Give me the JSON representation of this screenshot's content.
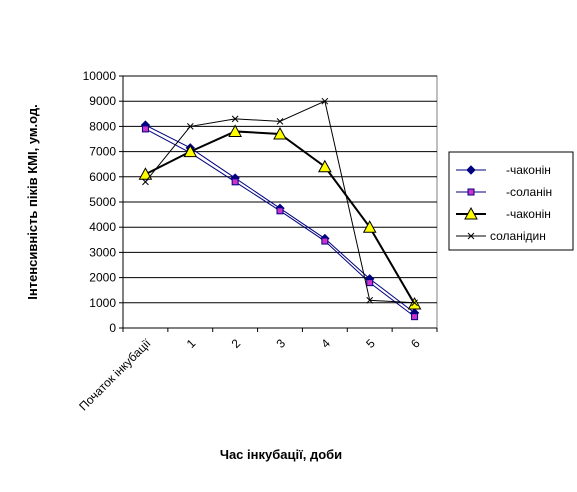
{
  "chart_data": {
    "type": "line",
    "title": "",
    "xlabel": "Час інкубації, доби",
    "ylabel": "Інтенсивність піків КМІ, ум.од.",
    "categories": [
      "Початок інкубації",
      "1",
      "2",
      "3",
      "4",
      "5",
      "6"
    ],
    "ylim": [
      0,
      10000
    ],
    "yticks": [
      0,
      1000,
      2000,
      3000,
      4000,
      5000,
      6000,
      7000,
      8000,
      9000,
      10000
    ],
    "grid": "horizontal",
    "legend_position": "right",
    "series": [
      {
        "name": "-чаконін",
        "marker": "diamond",
        "color": "#000080",
        "marker_fill": "#000080",
        "values": [
          8050,
          7150,
          5950,
          4750,
          3550,
          1950,
          600
        ]
      },
      {
        "name": "-соланін",
        "marker": "square",
        "color": "#000080",
        "marker_fill": "#cc33cc",
        "values": [
          7900,
          6950,
          5800,
          4650,
          3450,
          1800,
          450
        ]
      },
      {
        "name": "-чаконін",
        "marker": "triangle",
        "color": "#000000",
        "marker_fill": "#ffff00",
        "values": [
          6100,
          7000,
          7800,
          7700,
          6400,
          4000,
          950
        ]
      },
      {
        "name": "соланідин",
        "marker": "cross",
        "color": "#000000",
        "marker_fill": "#000000",
        "values": [
          5800,
          8000,
          8300,
          8200,
          9000,
          1100,
          1000
        ]
      }
    ]
  }
}
